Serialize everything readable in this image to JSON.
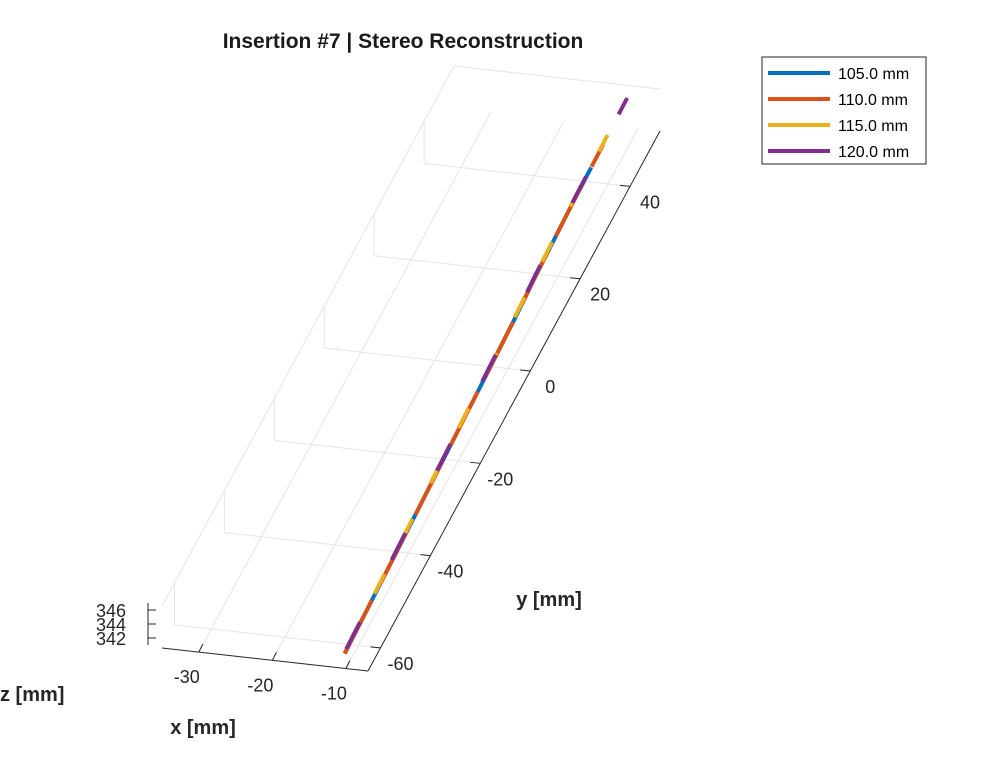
{
  "chart_data": {
    "type": "line",
    "title": "Insertion #7 | Stereo Reconstruction",
    "xlabel": "x [mm]",
    "ylabel": "y [mm]",
    "zlabel": "z [mm]",
    "x_ticks": [
      "-30",
      "-20",
      "-10"
    ],
    "y_ticks": [
      "-60",
      "-40",
      "-20",
      "0",
      "20",
      "40"
    ],
    "z_ticks": [
      "342",
      "344",
      "346"
    ],
    "xlim": [
      -35,
      -7
    ],
    "ylim": [
      -65,
      52
    ],
    "zlim": [
      341,
      347
    ],
    "grid": true,
    "legend_position": "top-right",
    "series": [
      {
        "name": "105.0 mm",
        "color": "#0072BD",
        "x": [
          -11.2,
          -11.6,
          -12.2,
          -12.6,
          -12.9,
          -13.1,
          -13.2,
          -13.3
        ],
        "y": [
          -62,
          -40,
          -10,
          10,
          20,
          30,
          35,
          43
        ]
      },
      {
        "name": "110.0 mm",
        "color": "#D95319",
        "x": [
          -11.2,
          -11.6,
          -12.2,
          -12.6,
          -12.9,
          -13.1,
          -13.2,
          -13.3,
          -13.35
        ],
        "y": [
          -62,
          -40,
          -10,
          10,
          20,
          30,
          35,
          43,
          48
        ]
      },
      {
        "name": "115.0 mm",
        "color": "#EDB120",
        "x": [
          -11.3,
          -11.7,
          -12.3,
          -12.7,
          -13.0,
          -13.2,
          -13.3,
          -13.4,
          -13.45
        ],
        "y": [
          -61,
          -40,
          -10,
          10,
          20,
          30,
          38,
          45,
          50
        ]
      },
      {
        "name": "120.0 mm",
        "color": "#7E2F8E",
        "x": [
          -11.3,
          -11.7,
          -12.3,
          -12.7,
          -13.0,
          -13.2,
          -13.3,
          -13.4,
          -13.5
        ],
        "y": [
          -61,
          -40,
          -10,
          10,
          20,
          30,
          38,
          48,
          58
        ]
      }
    ]
  }
}
